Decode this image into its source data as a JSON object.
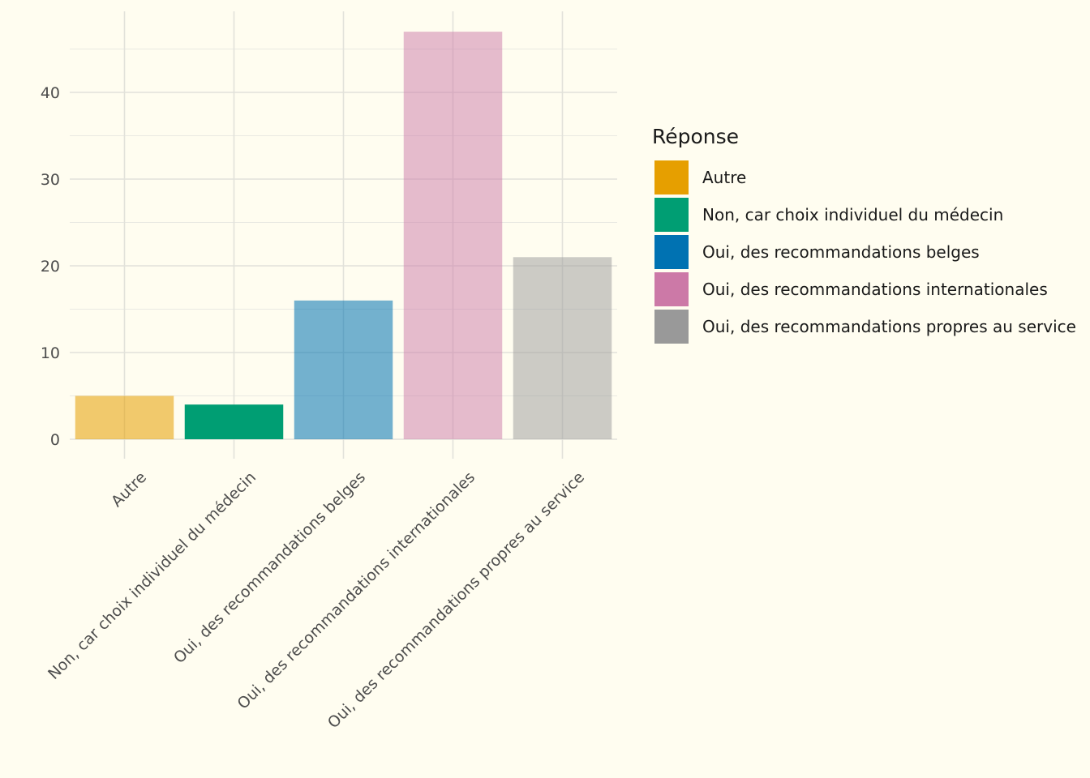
{
  "chart_data": {
    "type": "bar",
    "categories": [
      "Autre",
      "Non, car choix individuel du médecin",
      "Oui, des recommandations belges",
      "Oui, des recommandations internationales",
      "Oui, des recommandations propres au service"
    ],
    "values": [
      5,
      4,
      16,
      47,
      21
    ],
    "colors": [
      "#E69F00",
      "#009E73",
      "#0072B2",
      "#CC79A7",
      "#999999"
    ],
    "bar_alpha": [
      0.55,
      1.0,
      0.55,
      0.5,
      0.5
    ],
    "title": "",
    "xlabel": "",
    "ylabel": "",
    "ylim": [
      0,
      49
    ],
    "yticks": [
      0,
      10,
      20,
      30,
      40
    ],
    "grid": true,
    "legend": {
      "title": "Réponse",
      "position": "right",
      "entries": [
        "Autre",
        "Non, car choix individuel du médecin",
        "Oui, des recommandations belges",
        "Oui, des recommandations internationales",
        "Oui, des recommandations propres au service"
      ]
    }
  }
}
